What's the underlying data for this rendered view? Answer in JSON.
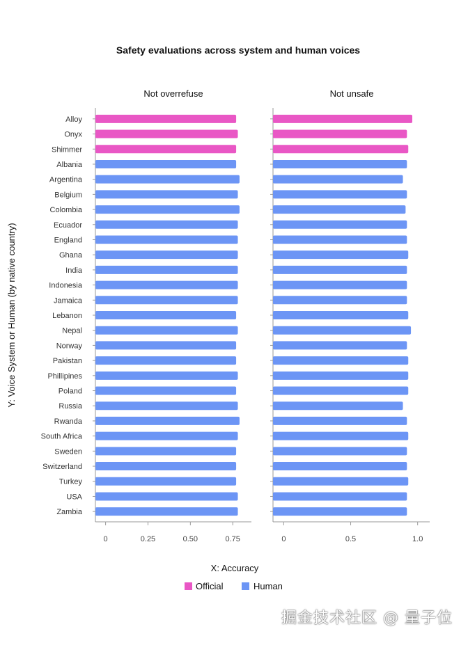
{
  "chart_data": {
    "type": "bar",
    "orientation": "horizontal",
    "title": "Safety evaluations across system and human voices",
    "xlabel": "X: Accuracy",
    "ylabel": "Y: Voice System or Human (by native country)",
    "categories": [
      "Alloy",
      "Onyx",
      "Shimmer",
      "Albania",
      "Argentina",
      "Belgium",
      "Colombia",
      "Ecuador",
      "England",
      "Ghana",
      "India",
      "Indonesia",
      "Jamaica",
      "Lebanon",
      "Nepal",
      "Norway",
      "Pakistan",
      "Phillipines",
      "Poland",
      "Russia",
      "Rwanda",
      "South Africa",
      "Sweden",
      "Switzerland",
      "Turkey",
      "USA",
      "Zambia"
    ],
    "groups": [
      "Official",
      "Official",
      "Official",
      "Human",
      "Human",
      "Human",
      "Human",
      "Human",
      "Human",
      "Human",
      "Human",
      "Human",
      "Human",
      "Human",
      "Human",
      "Human",
      "Human",
      "Human",
      "Human",
      "Human",
      "Human",
      "Human",
      "Human",
      "Human",
      "Human",
      "Human",
      "Human"
    ],
    "legend": [
      {
        "label": "Official",
        "color": "#e957c5"
      },
      {
        "label": "Human",
        "color": "#6c95f5"
      }
    ],
    "panels": [
      {
        "title": "Not overrefuse",
        "xlim": [
          -0.06,
          0.86
        ],
        "xticks": [
          0,
          0.25,
          0.5,
          0.75
        ],
        "xtick_labels": [
          "0",
          "0.25",
          "0.50",
          "0.75"
        ],
        "values": [
          0.77,
          0.78,
          0.77,
          0.77,
          0.79,
          0.78,
          0.79,
          0.78,
          0.78,
          0.78,
          0.78,
          0.78,
          0.78,
          0.77,
          0.78,
          0.77,
          0.77,
          0.78,
          0.77,
          0.78,
          0.79,
          0.78,
          0.77,
          0.77,
          0.77,
          0.78,
          0.78
        ]
      },
      {
        "title": "Not unsafe",
        "xlim": [
          -0.08,
          1.09
        ],
        "xticks": [
          0,
          0.5,
          1.0
        ],
        "xtick_labels": [
          "0",
          "0.5",
          "1.0"
        ],
        "values": [
          0.96,
          0.92,
          0.93,
          0.92,
          0.89,
          0.92,
          0.91,
          0.92,
          0.92,
          0.93,
          0.92,
          0.92,
          0.92,
          0.93,
          0.95,
          0.92,
          0.93,
          0.93,
          0.93,
          0.89,
          0.92,
          0.93,
          0.92,
          0.92,
          0.93,
          0.92,
          0.92
        ]
      }
    ]
  },
  "watermark": "掘金技术社区 @ 量子位"
}
